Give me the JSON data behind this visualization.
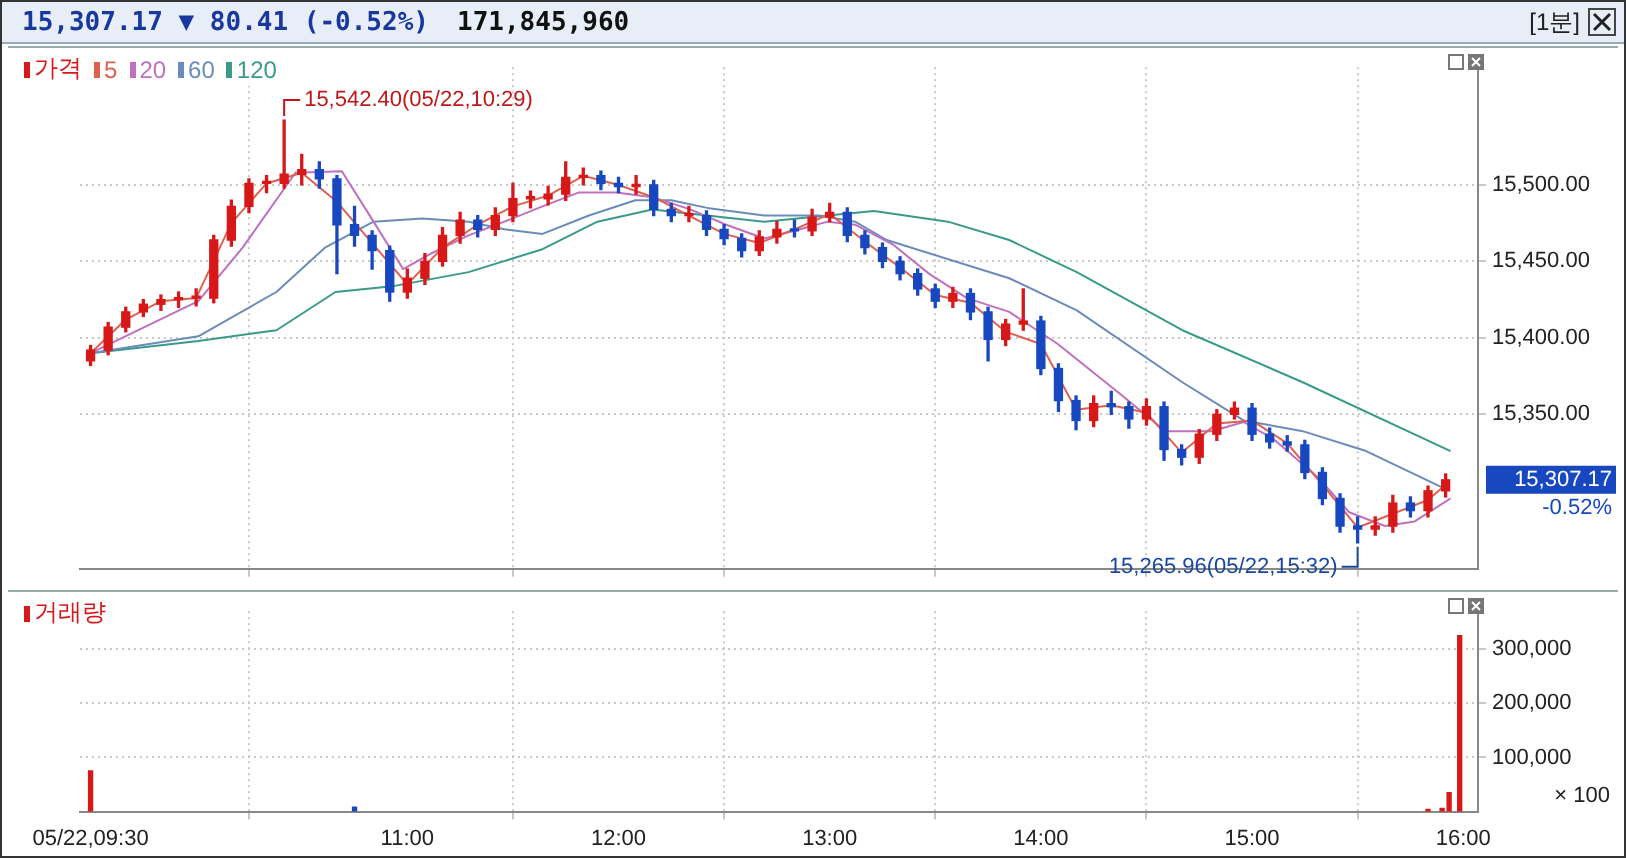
{
  "chart_data": [
    {
      "type": "candlestick",
      "title": "15,307.17 ▼ 80.41 (-0.52%)",
      "subtitle": "171,845,960",
      "legend": "top left",
      "grid": true,
      "tick_labels": "y",
      "xlim": [
        9.45,
        16.07
      ],
      "xticks": [
        {
          "value": 9.5,
          "label": null
        },
        {
          "value": 11,
          "label": null
        },
        {
          "value": 12,
          "label": null
        },
        {
          "value": 13,
          "label": null
        },
        {
          "value": 14,
          "label": null
        },
        {
          "value": 15,
          "label": null
        },
        {
          "value": 16,
          "label": null
        }
      ],
      "ylim": [
        15249,
        15577
      ],
      "yticks": [
        {
          "value": 15350,
          "label": "15,350.00"
        },
        {
          "value": 15400,
          "label": "15,400.00"
        },
        {
          "value": 15450,
          "label": "15,450.00"
        },
        {
          "value": 15500,
          "label": "15,500.00"
        }
      ],
      "annotations": [
        "[1분]",
        {
          "text": "15,542.40(05/22,10:29)",
          "x": 10.4167,
          "y": 15542.4
        },
        {
          "text": "15,265.96(05/22,15:32)",
          "x": 15.5,
          "y": 15265.96
        },
        "15,307.17",
        "-0.52%"
      ],
      "series": [
        {
          "name": "가격",
          "type": "candlestick",
          "x": [
            9.5,
            9.5833,
            9.6667,
            9.75,
            9.8333,
            9.9167,
            10,
            10.0833,
            10.1667,
            10.25,
            10.3333,
            10.4167,
            10.5,
            10.5833,
            10.6667,
            10.75,
            10.8333,
            10.9167,
            11,
            11.0833,
            11.1667,
            11.25,
            11.3333,
            11.4167,
            11.5,
            11.5833,
            11.6667,
            11.75,
            11.8333,
            11.9167,
            12,
            12.0833,
            12.1667,
            12.25,
            12.3333,
            12.4167,
            12.5,
            12.5833,
            12.6667,
            12.75,
            12.8333,
            12.9167,
            13,
            13.0833,
            13.1667,
            13.25,
            13.3333,
            13.4167,
            13.5,
            13.5833,
            13.6667,
            13.75,
            13.8333,
            13.9167,
            14,
            14.0833,
            14.1667,
            14.25,
            14.3333,
            14.4167,
            14.5,
            14.5833,
            14.6667,
            14.75,
            14.8333,
            14.9167,
            15,
            15.0833,
            15.1667,
            15.25,
            15.3333,
            15.4167,
            15.5,
            15.5833,
            15.6667,
            15.75,
            15.8333,
            15.9167
          ],
          "ohlc": [
            [
              15385,
              15395,
              15382,
              15392
            ],
            [
              15392,
              15410,
              15389,
              15407
            ],
            [
              15407,
              15420,
              15404,
              15417
            ],
            [
              15417,
              15425,
              15414,
              15422
            ],
            [
              15422,
              15428,
              15418,
              15425
            ],
            [
              15425,
              15430,
              15420,
              15426
            ],
            [
              15426,
              15432,
              15421,
              15426
            ],
            [
              15426,
              15467,
              15423,
              15464
            ],
            [
              15464,
              15490,
              15460,
              15486
            ],
            [
              15486,
              15504,
              15482,
              15501
            ],
            [
              15501,
              15506,
              15495,
              15501
            ],
            [
              15501,
              15542.4,
              15498,
              15507
            ],
            [
              15507,
              15520,
              15500,
              15510
            ],
            [
              15510,
              15515,
              15498,
              15504
            ],
            [
              15504,
              15506,
              15442,
              15474
            ],
            [
              15474,
              15486,
              15460,
              15467
            ],
            [
              15467,
              15470,
              15445,
              15457
            ],
            [
              15457,
              15460,
              15424,
              15430
            ],
            [
              15430,
              15445,
              15426,
              15439
            ],
            [
              15439,
              15455,
              15435,
              15450
            ],
            [
              15450,
              15472,
              15447,
              15467
            ],
            [
              15467,
              15482,
              15462,
              15477
            ],
            [
              15477,
              15480,
              15466,
              15471
            ],
            [
              15471,
              15485,
              15467,
              15480
            ],
            [
              15480,
              15501,
              15476,
              15491
            ],
            [
              15491,
              15496,
              15485,
              15491
            ],
            [
              15491,
              15499,
              15487,
              15494
            ],
            [
              15494,
              15515,
              15490,
              15505
            ],
            [
              15505,
              15511,
              15500,
              15506
            ],
            [
              15506,
              15509,
              15497,
              15501
            ],
            [
              15501,
              15505,
              15495,
              15499
            ],
            [
              15499,
              15506,
              15494,
              15500
            ],
            [
              15500,
              15503,
              15480,
              15484
            ],
            [
              15484,
              15488,
              15476,
              15480
            ],
            [
              15480,
              15486,
              15476,
              15480
            ],
            [
              15480,
              15483,
              15467,
              15471
            ],
            [
              15471,
              15474,
              15461,
              15465
            ],
            [
              15465,
              15468,
              15453,
              15457
            ],
            [
              15457,
              15470,
              15454,
              15466
            ],
            [
              15466,
              15476,
              15462,
              15471
            ],
            [
              15471,
              15477,
              15466,
              15470
            ],
            [
              15470,
              15484,
              15467,
              15479
            ],
            [
              15479,
              15488,
              15476,
              15482
            ],
            [
              15482,
              15485,
              15463,
              15467
            ],
            [
              15467,
              15470,
              15455,
              15459
            ],
            [
              15459,
              15462,
              15446,
              15450
            ],
            [
              15450,
              15453,
              15438,
              15442
            ],
            [
              15442,
              15445,
              15428,
              15432
            ],
            [
              15432,
              15435,
              15420,
              15424
            ],
            [
              15424,
              15433,
              15420,
              15429
            ],
            [
              15429,
              15432,
              15412,
              15417
            ],
            [
              15417,
              15420,
              15385,
              15399
            ],
            [
              15399,
              15412,
              15395,
              15409
            ],
            [
              15409,
              15432,
              15405,
              15411
            ],
            [
              15411,
              15414,
              15376,
              15380
            ],
            [
              15380,
              15383,
              15352,
              15359
            ],
            [
              15359,
              15362,
              15340,
              15346
            ],
            [
              15346,
              15362,
              15342,
              15357
            ],
            [
              15357,
              15365,
              15350,
              15355
            ],
            [
              15355,
              15358,
              15341,
              15347
            ],
            [
              15347,
              15360,
              15343,
              15355
            ],
            [
              15355,
              15358,
              15320,
              15327
            ],
            [
              15327,
              15330,
              15317,
              15322
            ],
            [
              15322,
              15340,
              15318,
              15337
            ],
            [
              15337,
              15353,
              15333,
              15350
            ],
            [
              15350,
              15358,
              15347,
              15354
            ],
            [
              15354,
              15357,
              15333,
              15337
            ],
            [
              15337,
              15341,
              15328,
              15332
            ],
            [
              15332,
              15336,
              15326,
              15330
            ],
            [
              15330,
              15333,
              15308,
              15312
            ],
            [
              15312,
              15315,
              15291,
              15295
            ],
            [
              15295,
              15298,
              15273,
              15277
            ],
            [
              15277,
              15283,
              15265.96,
              15275
            ],
            [
              15275,
              15283,
              15271,
              15277
            ],
            [
              15277,
              15297,
              15273,
              15292
            ],
            [
              15292,
              15296,
              15283,
              15287
            ],
            [
              15287,
              15303,
              15283,
              15300
            ],
            [
              15300,
              15311,
              15296,
              15307.17
            ]
          ],
          "colors": [
            "#d81818",
            "#d81818",
            "#d81818",
            "#d81818",
            "#d81818",
            "#d81818",
            "#d81818",
            "#d81818",
            "#d81818",
            "#d81818",
            "#d81818",
            "#d81818",
            "#d81818",
            "#1848c0",
            "#1848c0",
            "#1848c0",
            "#1848c0",
            "#1848c0",
            "#d81818",
            "#d81818",
            "#d81818",
            "#d81818",
            "#1848c0",
            "#d81818",
            "#d81818",
            "#d81818",
            "#d81818",
            "#d81818",
            "#d81818",
            "#1848c0",
            "#1848c0",
            "#d81818",
            "#1848c0",
            "#1848c0",
            "#d81818",
            "#1848c0",
            "#1848c0",
            "#1848c0",
            "#d81818",
            "#d81818",
            "#1848c0",
            "#d81818",
            "#d81818",
            "#1848c0",
            "#1848c0",
            "#1848c0",
            "#1848c0",
            "#1848c0",
            "#1848c0",
            "#d81818",
            "#1848c0",
            "#1848c0",
            "#d81818",
            "#d81818",
            "#1848c0",
            "#1848c0",
            "#1848c0",
            "#d81818",
            "#1848c0",
            "#1848c0",
            "#d81818",
            "#1848c0",
            "#1848c0",
            "#d81818",
            "#d81818",
            "#d81818",
            "#1848c0",
            "#1848c0",
            "#1848c0",
            "#1848c0",
            "#1848c0",
            "#1848c0",
            "#1848c0",
            "#d81818",
            "#d81818",
            "#1848c0",
            "#d81818",
            "#d81818"
          ]
        },
        {
          "name": "5",
          "type": "line",
          "color": "#e06050",
          "x": [
            9.5,
            9.6667,
            9.8333,
            10,
            10.1667,
            10.3333,
            10.5,
            10.6667,
            10.8333,
            11,
            11.1667,
            11.3333,
            11.5,
            11.6667,
            11.8333,
            12,
            12.1667,
            12.3333,
            12.5,
            12.6667,
            12.8333,
            13,
            13.1667,
            13.3333,
            13.5,
            13.6667,
            13.8333,
            14,
            14.1667,
            14.3333,
            14.5,
            14.6667,
            14.8333,
            15,
            15.1667,
            15.3333,
            15.5,
            15.6667,
            15.8333,
            15.9167
          ],
          "values": [
            15390,
            15412,
            15424,
            15426,
            15475,
            15501,
            15508,
            15489,
            15462,
            15435,
            15459,
            15474,
            15486,
            15493,
            15506,
            15500,
            15492,
            15480,
            15468,
            15462,
            15471,
            15481,
            15463,
            15446,
            15428,
            15423,
            15404,
            15396,
            15353,
            15356,
            15351,
            15325,
            15344,
            15346,
            15331,
            15304,
            15276,
            15285,
            15294,
            15304
          ]
        },
        {
          "name": "20",
          "type": "line",
          "color": "#c070c0",
          "x": [
            9.5,
            10.01,
            10.22,
            10.47,
            10.69,
            10.84,
            10.98,
            11.11,
            11.29,
            11.46,
            11.64,
            11.81,
            11.99,
            12.16,
            12.34,
            12.51,
            12.69,
            12.86,
            12.99,
            13.12,
            13.3,
            13.47,
            13.65,
            13.85,
            14.08,
            14.37,
            14.59,
            14.81,
            14.96,
            15.1,
            15.31,
            15.46,
            15.63,
            15.77,
            15.94
          ],
          "values": [
            15390,
            15424,
            15459,
            15508,
            15509,
            15476,
            15445,
            15455,
            15467,
            15476,
            15486,
            15495,
            15495,
            15492,
            15484,
            15474,
            15465,
            15471,
            15476,
            15474,
            15461,
            15442,
            15426,
            15417,
            15396,
            15364,
            15339,
            15339,
            15345,
            15334,
            15309,
            15286,
            15277,
            15280,
            15295
          ]
        },
        {
          "name": "60",
          "type": "line",
          "color": "#6a8cb8",
          "x": [
            9.5,
            10.01,
            10.38,
            10.61,
            10.84,
            11.07,
            11.29,
            11.46,
            11.64,
            11.86,
            12.08,
            12.25,
            12.42,
            12.69,
            12.95,
            13.12,
            13.27,
            13.85,
            14.17,
            14.67,
            14.96,
            15.24,
            15.54,
            15.92
          ],
          "values": [
            15390,
            15401,
            15430,
            15459,
            15476,
            15478,
            15476,
            15471,
            15468,
            15480,
            15490,
            15490,
            15485,
            15480,
            15480,
            15476,
            15464,
            15439,
            15418,
            15371,
            15346,
            15339,
            15326,
            15301
          ]
        },
        {
          "name": "120",
          "type": "line",
          "color": "#3a9a8a",
          "x": [
            9.5,
            10.01,
            10.38,
            10.66,
            10.94,
            11.29,
            11.64,
            11.9,
            12.16,
            12.42,
            12.69,
            12.99,
            13.21,
            13.56,
            13.85,
            14.17,
            14.67,
            15.24,
            15.94
          ],
          "values": [
            15390,
            15398,
            15405,
            15430,
            15434,
            15443,
            15458,
            15476,
            15484,
            15480,
            15476,
            15480,
            15483,
            15476,
            15464,
            15443,
            15405,
            15371,
            15326
          ]
        }
      ]
    },
    {
      "type": "bar",
      "legend": "top left",
      "grid": true,
      "xlim": [
        9.45,
        16.07
      ],
      "xticks": [
        {
          "value": 9.5,
          "label": "05/22,09:30"
        },
        {
          "value": 11,
          "label": "11:00"
        },
        {
          "value": 12,
          "label": "12:00"
        },
        {
          "value": 13,
          "label": "13:00"
        },
        {
          "value": 14,
          "label": "14:00"
        },
        {
          "value": 15,
          "label": "15:00"
        },
        {
          "value": 16,
          "label": "16:00"
        }
      ],
      "ylim": [
        0,
        370000
      ],
      "yticks": [
        {
          "value": 100000,
          "label": "100,000"
        },
        {
          "value": 200000,
          "label": "200,000"
        },
        {
          "value": 300000,
          "label": "300,000"
        }
      ],
      "annotations": [
        "× 100"
      ],
      "series": [
        {
          "name": "거래량",
          "x": [
            9.5,
            10.75,
            15.8333,
            15.9,
            15.9333,
            15.9833
          ],
          "values": [
            75000,
            8000,
            4000,
            6000,
            35000,
            325000
          ],
          "colors": [
            "#d81818",
            "#1848c0",
            "#d81818",
            "#d81818",
            "#d81818",
            "#d81818"
          ]
        }
      ]
    }
  ]
}
